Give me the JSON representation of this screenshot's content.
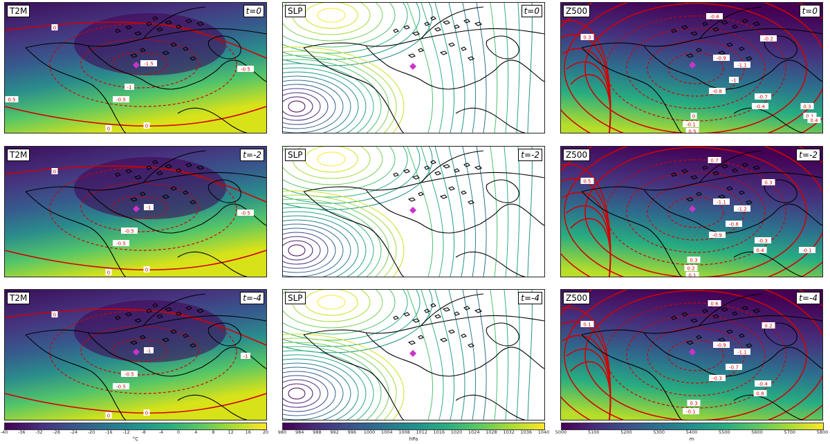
{
  "panels": [
    {
      "variable": "T2M",
      "time": "t=0"
    },
    {
      "variable": "SLP",
      "time": "t=0"
    },
    {
      "variable": "Z500",
      "time": "t=0"
    },
    {
      "variable": "T2M",
      "time": "t=-2"
    },
    {
      "variable": "SLP",
      "time": "t=-2"
    },
    {
      "variable": "Z500",
      "time": "t=-2"
    },
    {
      "variable": "T2M",
      "time": "t=-4"
    },
    {
      "variable": "SLP",
      "time": "t=-4"
    },
    {
      "variable": "Z500",
      "time": "t=-4"
    }
  ],
  "colorbars": [
    {
      "unit": "°C",
      "ticks": [
        "-40",
        "-36",
        "-32",
        "-28",
        "-24",
        "-20",
        "-16",
        "-12",
        "-8",
        "-4",
        "0",
        "4",
        "8",
        "12",
        "16",
        "20"
      ]
    },
    {
      "unit": "hPa",
      "ticks": [
        "980",
        "984",
        "988",
        "992",
        "996",
        "1000",
        "1004",
        "1008",
        "1012",
        "1016",
        "1020",
        "1024",
        "1028",
        "1032",
        "1036",
        "1040"
      ]
    },
    {
      "unit": "m",
      "ticks": [
        "5000",
        "5100",
        "5200",
        "5300",
        "5400",
        "5500",
        "5600",
        "5700",
        "5800"
      ]
    }
  ],
  "contour_labels": {
    "t2m_t0": [
      "0",
      "-1.5",
      "-1",
      "-0.5",
      "-0.5",
      "0",
      "0",
      "0.5"
    ],
    "t2m_tm2": [
      "0",
      "-1",
      "-0.5",
      "-0.5",
      "-0.5",
      "0",
      "0"
    ],
    "t2m_tm4": [
      "0",
      "-1",
      "-0.5",
      "-0.5",
      "-1",
      "0",
      "0"
    ],
    "z500_t0": [
      "-0.6",
      "0.3",
      "-0.2",
      "-0.9",
      "-1.1",
      "-1",
      "-0.8",
      "-0.7",
      "-0.4",
      "0",
      "-0.1",
      "0.5",
      "0.3",
      "0.1",
      "0.4"
    ],
    "z500_tm2": [
      "0.7",
      "0.5",
      "0.3",
      "-1.1",
      "-1.2",
      "-0.8",
      "-0.9",
      "-0.3",
      "0.4",
      "0.3",
      "0.2",
      "0.1",
      "-0.1"
    ],
    "z500_tm4": [
      "0.6",
      "0.1",
      "0.2",
      "-0.9",
      "-1.1",
      "-0.7",
      "-0.3",
      "-0.4",
      "0.8",
      "0.3",
      "-0.1"
    ]
  },
  "colors": {
    "viridis": [
      "#440154",
      "#472c7a",
      "#3b518b",
      "#2c718e",
      "#21908d",
      "#27ad81",
      "#5cc863",
      "#aadc32",
      "#fde725"
    ],
    "contour": "#d40000",
    "marker": "#cc33cc"
  },
  "chart_data": [
    {
      "type": "heatmap",
      "variable": "T2M",
      "time": "t=0",
      "colorbar_range": [
        -40,
        20
      ],
      "contour_labels_key": "t2m_t0"
    },
    {
      "type": "heatmap",
      "variable": "SLP",
      "time": "t=0",
      "colorbar_range": [
        980,
        1040
      ],
      "contour_style": "colored lines"
    },
    {
      "type": "heatmap",
      "variable": "Z500",
      "time": "t=0",
      "colorbar_range": [
        5000,
        5800
      ],
      "contour_labels_key": "z500_t0"
    },
    {
      "type": "heatmap",
      "variable": "T2M",
      "time": "t=-2",
      "colorbar_range": [
        -40,
        20
      ],
      "contour_labels_key": "t2m_tm2"
    },
    {
      "type": "heatmap",
      "variable": "SLP",
      "time": "t=-2",
      "colorbar_range": [
        980,
        1040
      ],
      "contour_style": "colored lines"
    },
    {
      "type": "heatmap",
      "variable": "Z500",
      "time": "t=-2",
      "colorbar_range": [
        5000,
        5800
      ],
      "contour_labels_key": "z500_tm2"
    },
    {
      "type": "heatmap",
      "variable": "T2M",
      "time": "t=-4",
      "colorbar_range": [
        -40,
        20
      ],
      "contour_labels_key": "t2m_tm4"
    },
    {
      "type": "heatmap",
      "variable": "SLP",
      "time": "t=-4",
      "colorbar_range": [
        980,
        1040
      ],
      "contour_style": "colored lines"
    },
    {
      "type": "heatmap",
      "variable": "Z500",
      "time": "t=-4",
      "colorbar_range": [
        5000,
        5800
      ],
      "contour_labels_key": "z500_tm4"
    }
  ]
}
